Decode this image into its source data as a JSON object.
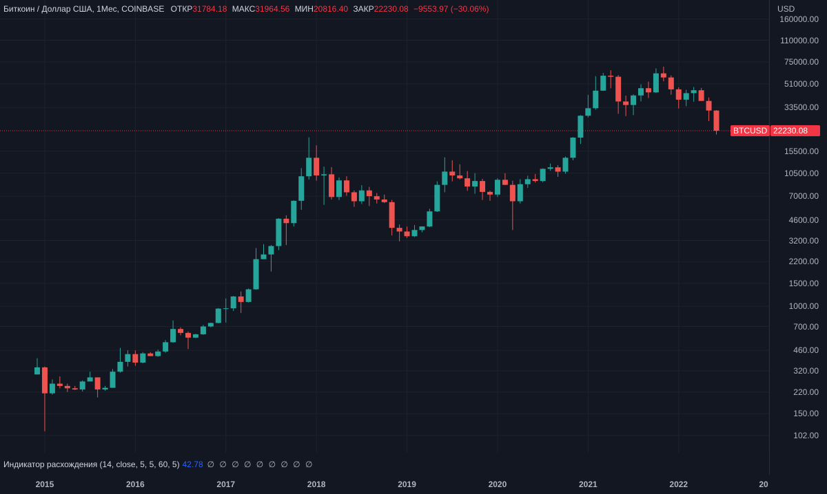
{
  "legend": {
    "symbol": "Биткоин / Доллар США, 1Мес, COINBASE",
    "open_label": "ОТКР",
    "open": "31784.18",
    "high_label": "МАКС",
    "high": "31964.56",
    "low_label": "МИН",
    "low": "20816.40",
    "close_label": "ЗАКР",
    "close": "22230.08",
    "change": "−9553.97 (−30.06%)"
  },
  "indicator": {
    "label": "Индикатор расхождения (14, close, 5, 5, 60, 5)",
    "value": "42.78",
    "na_values": "∅ ∅ ∅ ∅ ∅ ∅ ∅ ∅ ∅"
  },
  "price_axis": {
    "currency": "USD",
    "ticks": [
      "160000.00",
      "110000.00",
      "75000.00",
      "51000.00",
      "33500.00",
      "15500.00",
      "10500.00",
      "7000.00",
      "4600.00",
      "3200.00",
      "2200.00",
      "1500.00",
      "1000.00",
      "700.00",
      "460.00",
      "320.00",
      "220.00",
      "150.00",
      "102.00"
    ]
  },
  "time_axis": {
    "ticks": [
      "2015",
      "2016",
      "2017",
      "2018",
      "2019",
      "2020",
      "2021",
      "2022",
      "20"
    ]
  },
  "last_price": {
    "symbol": "BTCUSD",
    "value": "22230.08"
  },
  "colors": {
    "background": "#131722",
    "up": "#26a69a",
    "down": "#ef5350",
    "grid": "#1e222d",
    "indicator_value": "#2962ff"
  },
  "chart_data": {
    "type": "candlestick",
    "title": "Биткоин / Доллар США, 1Мес, COINBASE",
    "ylabel": "USD",
    "log_scale": true,
    "ylim": [
      85,
      180000
    ],
    "xlim": [
      "2014-12",
      "2023-01"
    ],
    "candles": [
      {
        "t": "2014-12",
        "o": 300,
        "h": 400,
        "l": 300,
        "c": 340
      },
      {
        "t": "2015-01",
        "o": 340,
        "h": 345,
        "l": 110,
        "c": 215
      },
      {
        "t": "2015-02",
        "o": 215,
        "h": 275,
        "l": 210,
        "c": 255
      },
      {
        "t": "2015-03",
        "o": 255,
        "h": 290,
        "l": 235,
        "c": 245
      },
      {
        "t": "2015-04",
        "o": 245,
        "h": 255,
        "l": 220,
        "c": 235
      },
      {
        "t": "2015-05",
        "o": 235,
        "h": 245,
        "l": 228,
        "c": 230
      },
      {
        "t": "2015-06",
        "o": 230,
        "h": 270,
        "l": 222,
        "c": 265
      },
      {
        "t": "2015-07",
        "o": 265,
        "h": 315,
        "l": 265,
        "c": 285
      },
      {
        "t": "2015-08",
        "o": 285,
        "h": 285,
        "l": 200,
        "c": 230
      },
      {
        "t": "2015-09",
        "o": 230,
        "h": 245,
        "l": 225,
        "c": 237
      },
      {
        "t": "2015-10",
        "o": 237,
        "h": 330,
        "l": 237,
        "c": 315
      },
      {
        "t": "2015-11",
        "o": 315,
        "h": 480,
        "l": 310,
        "c": 375
      },
      {
        "t": "2015-12",
        "o": 375,
        "h": 460,
        "l": 345,
        "c": 430
      },
      {
        "t": "2016-01",
        "o": 430,
        "h": 460,
        "l": 350,
        "c": 370
      },
      {
        "t": "2016-02",
        "o": 370,
        "h": 445,
        "l": 365,
        "c": 435
      },
      {
        "t": "2016-03",
        "o": 435,
        "h": 445,
        "l": 420,
        "c": 415
      },
      {
        "t": "2016-04",
        "o": 415,
        "h": 465,
        "l": 410,
        "c": 450
      },
      {
        "t": "2016-05",
        "o": 450,
        "h": 550,
        "l": 440,
        "c": 530
      },
      {
        "t": "2016-06",
        "o": 530,
        "h": 780,
        "l": 525,
        "c": 670
      },
      {
        "t": "2016-07",
        "o": 670,
        "h": 690,
        "l": 600,
        "c": 625
      },
      {
        "t": "2016-08",
        "o": 625,
        "h": 640,
        "l": 470,
        "c": 575
      },
      {
        "t": "2016-09",
        "o": 575,
        "h": 615,
        "l": 570,
        "c": 610
      },
      {
        "t": "2016-10",
        "o": 610,
        "h": 720,
        "l": 605,
        "c": 700
      },
      {
        "t": "2016-11",
        "o": 700,
        "h": 750,
        "l": 690,
        "c": 745
      },
      {
        "t": "2016-12",
        "o": 745,
        "h": 970,
        "l": 740,
        "c": 960
      },
      {
        "t": "2017-01",
        "o": 960,
        "h": 1150,
        "l": 750,
        "c": 965
      },
      {
        "t": "2017-02",
        "o": 965,
        "h": 1200,
        "l": 920,
        "c": 1190
      },
      {
        "t": "2017-03",
        "o": 1190,
        "h": 1300,
        "l": 890,
        "c": 1080
      },
      {
        "t": "2017-04",
        "o": 1080,
        "h": 1370,
        "l": 1070,
        "c": 1350
      },
      {
        "t": "2017-05",
        "o": 1350,
        "h": 2800,
        "l": 1340,
        "c": 2300
      },
      {
        "t": "2017-06",
        "o": 2300,
        "h": 3000,
        "l": 2300,
        "c": 2500
      },
      {
        "t": "2017-07",
        "o": 2500,
        "h": 2950,
        "l": 1850,
        "c": 2900
      },
      {
        "t": "2017-08",
        "o": 2900,
        "h": 4750,
        "l": 2700,
        "c": 4700
      },
      {
        "t": "2017-09",
        "o": 4700,
        "h": 4990,
        "l": 2950,
        "c": 4350
      },
      {
        "t": "2017-10",
        "o": 4350,
        "h": 6500,
        "l": 4100,
        "c": 6450
      },
      {
        "t": "2017-11",
        "o": 6450,
        "h": 11500,
        "l": 5500,
        "c": 9950
      },
      {
        "t": "2017-12",
        "o": 9950,
        "h": 19800,
        "l": 9400,
        "c": 13800
      },
      {
        "t": "2018-01",
        "o": 13800,
        "h": 17200,
        "l": 9200,
        "c": 10100
      },
      {
        "t": "2018-02",
        "o": 10100,
        "h": 11800,
        "l": 6000,
        "c": 10300
      },
      {
        "t": "2018-03",
        "o": 10300,
        "h": 11700,
        "l": 6600,
        "c": 6900
      },
      {
        "t": "2018-04",
        "o": 6900,
        "h": 9750,
        "l": 6550,
        "c": 9250
      },
      {
        "t": "2018-05",
        "o": 9250,
        "h": 9950,
        "l": 7050,
        "c": 7500
      },
      {
        "t": "2018-06",
        "o": 7500,
        "h": 7750,
        "l": 5800,
        "c": 6400
      },
      {
        "t": "2018-07",
        "o": 6400,
        "h": 8500,
        "l": 6100,
        "c": 7750
      },
      {
        "t": "2018-08",
        "o": 7750,
        "h": 8250,
        "l": 5880,
        "c": 7000
      },
      {
        "t": "2018-09",
        "o": 7000,
        "h": 7400,
        "l": 6150,
        "c": 6600
      },
      {
        "t": "2018-10",
        "o": 6600,
        "h": 7200,
        "l": 6200,
        "c": 6300
      },
      {
        "t": "2018-11",
        "o": 6300,
        "h": 6550,
        "l": 3500,
        "c": 4000
      },
      {
        "t": "2018-12",
        "o": 4000,
        "h": 4250,
        "l": 3150,
        "c": 3750
      },
      {
        "t": "2019-01",
        "o": 3750,
        "h": 4100,
        "l": 3350,
        "c": 3450
      },
      {
        "t": "2019-02",
        "o": 3450,
        "h": 4200,
        "l": 3400,
        "c": 3850
      },
      {
        "t": "2019-03",
        "o": 3850,
        "h": 4100,
        "l": 3700,
        "c": 4100
      },
      {
        "t": "2019-04",
        "o": 4100,
        "h": 5600,
        "l": 4050,
        "c": 5350
      },
      {
        "t": "2019-05",
        "o": 5350,
        "h": 9100,
        "l": 5300,
        "c": 8550
      },
      {
        "t": "2019-06",
        "o": 8550,
        "h": 13900,
        "l": 7500,
        "c": 10800
      },
      {
        "t": "2019-07",
        "o": 10800,
        "h": 13200,
        "l": 9100,
        "c": 10100
      },
      {
        "t": "2019-08",
        "o": 10100,
        "h": 12300,
        "l": 9400,
        "c": 9600
      },
      {
        "t": "2019-09",
        "o": 9600,
        "h": 10900,
        "l": 7700,
        "c": 8300
      },
      {
        "t": "2019-10",
        "o": 8300,
        "h": 10500,
        "l": 7300,
        "c": 9150
      },
      {
        "t": "2019-11",
        "o": 9150,
        "h": 9500,
        "l": 6550,
        "c": 7550
      },
      {
        "t": "2019-12",
        "o": 7550,
        "h": 7700,
        "l": 6450,
        "c": 7200
      },
      {
        "t": "2020-01",
        "o": 7200,
        "h": 9600,
        "l": 6900,
        "c": 9350
      },
      {
        "t": "2020-02",
        "o": 9350,
        "h": 10500,
        "l": 8500,
        "c": 8550
      },
      {
        "t": "2020-03",
        "o": 8550,
        "h": 9200,
        "l": 3850,
        "c": 6400
      },
      {
        "t": "2020-04",
        "o": 6400,
        "h": 9450,
        "l": 6150,
        "c": 8650
      },
      {
        "t": "2020-05",
        "o": 8650,
        "h": 10050,
        "l": 8100,
        "c": 9450
      },
      {
        "t": "2020-06",
        "o": 9450,
        "h": 10350,
        "l": 8900,
        "c": 9150
      },
      {
        "t": "2020-07",
        "o": 9150,
        "h": 11450,
        "l": 8950,
        "c": 11350
      },
      {
        "t": "2020-08",
        "o": 11350,
        "h": 12450,
        "l": 10950,
        "c": 11650
      },
      {
        "t": "2020-09",
        "o": 11650,
        "h": 12100,
        "l": 9850,
        "c": 10800
      },
      {
        "t": "2020-10",
        "o": 10800,
        "h": 14100,
        "l": 10400,
        "c": 13800
      },
      {
        "t": "2020-11",
        "o": 13800,
        "h": 19850,
        "l": 13200,
        "c": 19700
      },
      {
        "t": "2020-12",
        "o": 19700,
        "h": 29300,
        "l": 17600,
        "c": 29000
      },
      {
        "t": "2021-01",
        "o": 29000,
        "h": 41950,
        "l": 28150,
        "c": 33100
      },
      {
        "t": "2021-02",
        "o": 33100,
        "h": 58350,
        "l": 32300,
        "c": 45150
      },
      {
        "t": "2021-03",
        "o": 45150,
        "h": 61800,
        "l": 44950,
        "c": 58800
      },
      {
        "t": "2021-04",
        "o": 58800,
        "h": 64850,
        "l": 47050,
        "c": 57750
      },
      {
        "t": "2021-05",
        "o": 57750,
        "h": 59500,
        "l": 30000,
        "c": 37300
      },
      {
        "t": "2021-06",
        "o": 37300,
        "h": 41350,
        "l": 28800,
        "c": 35050
      },
      {
        "t": "2021-07",
        "o": 35050,
        "h": 42300,
        "l": 29300,
        "c": 41500
      },
      {
        "t": "2021-08",
        "o": 41500,
        "h": 50500,
        "l": 37350,
        "c": 47150
      },
      {
        "t": "2021-09",
        "o": 47150,
        "h": 52950,
        "l": 39600,
        "c": 43800
      },
      {
        "t": "2021-10",
        "o": 43800,
        "h": 66999,
        "l": 43300,
        "c": 61300
      },
      {
        "t": "2021-11",
        "o": 61300,
        "h": 69000,
        "l": 53250,
        "c": 57000
      },
      {
        "t": "2021-12",
        "o": 57000,
        "h": 59100,
        "l": 42000,
        "c": 46200
      },
      {
        "t": "2022-01",
        "o": 46200,
        "h": 47900,
        "l": 32950,
        "c": 38500
      },
      {
        "t": "2022-02",
        "o": 38500,
        "h": 45850,
        "l": 34300,
        "c": 43200
      },
      {
        "t": "2022-03",
        "o": 43200,
        "h": 48200,
        "l": 37150,
        "c": 45500
      },
      {
        "t": "2022-04",
        "o": 45500,
        "h": 47450,
        "l": 37700,
        "c": 37650
      },
      {
        "t": "2022-05",
        "o": 37650,
        "h": 40000,
        "l": 26350,
        "c": 31784.18
      },
      {
        "t": "2022-06",
        "o": 31784.18,
        "h": 31964.56,
        "l": 20816.4,
        "c": 22230.08
      }
    ]
  }
}
